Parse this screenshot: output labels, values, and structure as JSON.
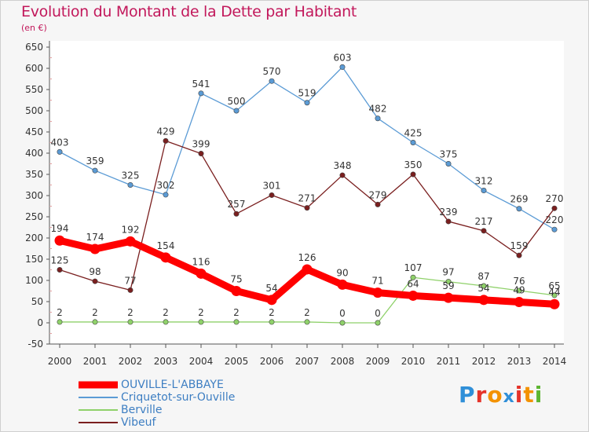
{
  "title": "Evolution du Montant de la Dette par Habitant",
  "unit_label": "(en €)",
  "brand": {
    "letters": [
      "P",
      "r",
      "o",
      "x",
      "i",
      "t",
      "i"
    ],
    "colors": [
      "#2f8fd8",
      "#e5332a",
      "#f39200",
      "#2f8fd8",
      "#e5332a",
      "#f39200",
      "#5cb531"
    ]
  },
  "chart_data": {
    "type": "line",
    "title": "Evolution du Montant de la Dette par Habitant",
    "ylabel": "(en €)",
    "xlabel": "",
    "x": [
      "2000",
      "2001",
      "2002",
      "2003",
      "2004",
      "2005",
      "2006",
      "2007",
      "2008",
      "2009",
      "2010",
      "2011",
      "2012",
      "2013",
      "2014"
    ],
    "yticks": [
      "-50",
      "0",
      "50",
      "100",
      "150",
      "200",
      "250",
      "300",
      "350",
      "400",
      "450",
      "500",
      "550",
      "600",
      "650"
    ],
    "ylim": [
      -50,
      650
    ],
    "grid": false,
    "legend_position": "bottom-left",
    "series": [
      {
        "name": "OUVILLE-L'ABBAYE",
        "color": "#ff0000",
        "values": [
          194,
          174,
          192,
          154,
          116,
          75,
          54,
          126,
          90,
          71,
          64,
          59,
          54,
          49,
          44
        ],
        "labels": [
          "194",
          "174",
          "192",
          "154",
          "116",
          "75",
          "54",
          "126",
          "90",
          "71",
          "64",
          "59",
          "54",
          "49",
          "44"
        ]
      },
      {
        "name": "Criquetot-sur-Ouville",
        "color": "#5b9bd5",
        "values": [
          403,
          359,
          325,
          302,
          541,
          500,
          570,
          519,
          603,
          482,
          425,
          375,
          312,
          269,
          220
        ],
        "labels": [
          "403",
          "359",
          "325",
          "302",
          "541",
          "500",
          "570",
          "519",
          "603",
          "482",
          "425",
          "375",
          "312",
          "269",
          "220"
        ]
      },
      {
        "name": "Berville",
        "color": "#8fd16a",
        "values": [
          2,
          2,
          2,
          2,
          2,
          2,
          2,
          2,
          0,
          0,
          107,
          97,
          87,
          76,
          65
        ],
        "labels": [
          "2",
          "2",
          "2",
          "2",
          "2",
          "2",
          "2",
          "2",
          "0",
          "0",
          "107",
          "97",
          "87",
          "76",
          "65"
        ]
      },
      {
        "name": "Vibeuf",
        "color": "#7a1f1f",
        "values": [
          125,
          98,
          77,
          429,
          399,
          257,
          301,
          271,
          348,
          279,
          350,
          239,
          217,
          159,
          270
        ],
        "labels": [
          "125",
          "98",
          "77",
          "429",
          "399",
          "257",
          "301",
          "271",
          "348",
          "279",
          "350",
          "239",
          "217",
          "159",
          "270"
        ]
      }
    ]
  }
}
